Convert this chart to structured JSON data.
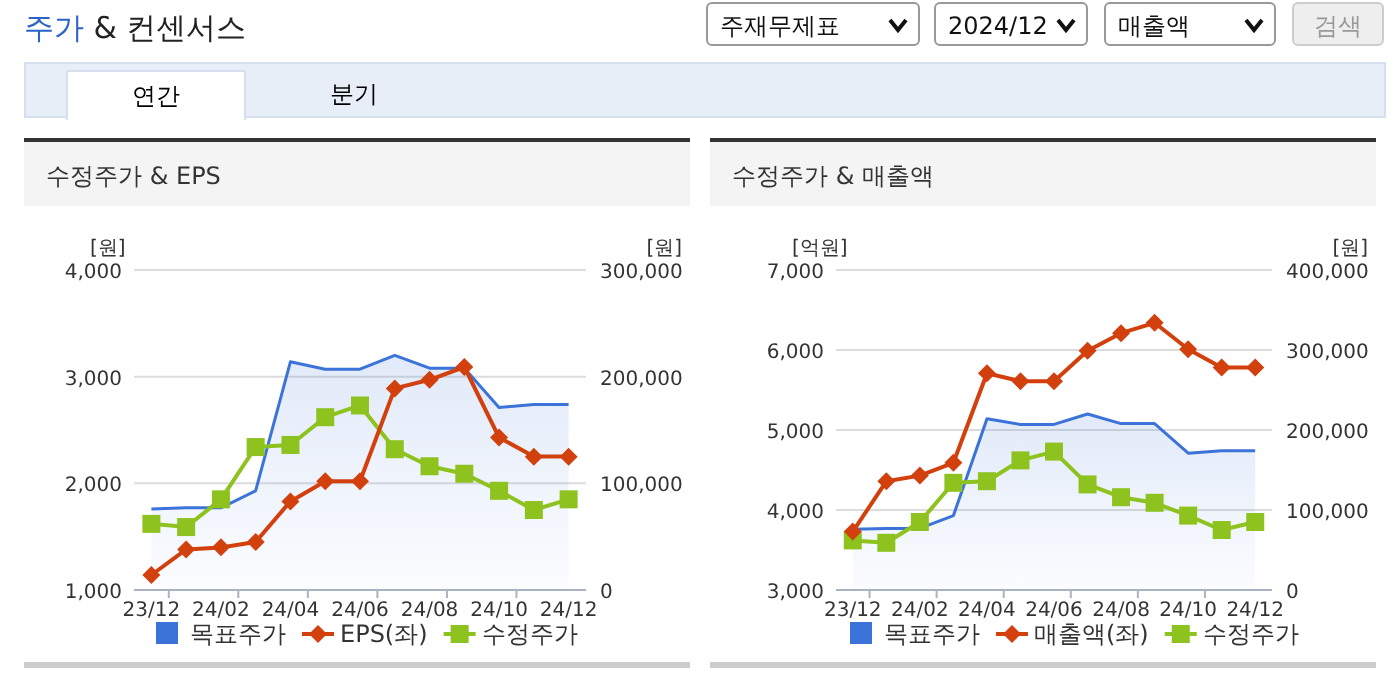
{
  "chart_data": [
    {
      "type": "other",
      "title": "주가 & 컨센서스",
      "annotations": [
        "주재무제표",
        "2024/12",
        "매출액",
        "검색",
        "연간",
        "분기"
      ]
    },
    {
      "type": "line",
      "title": "수정주가 & EPS",
      "ylabel": "[원]",
      "y2label": "[원]",
      "categories": [
        "23/12",
        null,
        "24/02",
        null,
        "24/04",
        null,
        "24/06",
        null,
        "24/08",
        null,
        "24/10",
        null,
        "24/12"
      ],
      "ylim": [
        1000,
        4000
      ],
      "yticks": [
        {
          "value": 1000,
          "label": "1,000"
        },
        {
          "value": 2000,
          "label": "2,000"
        },
        {
          "value": 3000,
          "label": "3,000"
        },
        {
          "value": 4000,
          "label": "4,000"
        }
      ],
      "y2lim": [
        0,
        300000
      ],
      "y2ticks": [
        0,
        {
          "value": 100000,
          "label": "100,000"
        },
        {
          "value": 200000,
          "label": "200,000"
        },
        {
          "value": 300000,
          "label": "300,000"
        }
      ],
      "grid": "y",
      "legend": "bottom",
      "series": [
        {
          "name": "목표주가",
          "type": "area",
          "axis": "y2",
          "color": "#3b73d9",
          "marker": "none",
          "values": [
            76000,
            77000,
            77000,
            93000,
            214000,
            207000,
            207000,
            220000,
            208000,
            208000,
            171000,
            174000,
            174000
          ]
        },
        {
          "name": "EPS(좌)",
          "type": "line",
          "color": "#d2400e",
          "marker": "diamond",
          "values": [
            1140,
            1380,
            1400,
            1450,
            1830,
            2020,
            2020,
            2890,
            2970,
            3090,
            2430,
            2250,
            2250
          ]
        },
        {
          "name": "수정주가",
          "type": "line",
          "axis": "y2",
          "color": "#8dc21f",
          "marker": "square",
          "values": [
            62000,
            59000,
            85000,
            134000,
            136000,
            162000,
            173000,
            132000,
            116000,
            109000,
            93000,
            75000,
            85000
          ]
        }
      ]
    },
    {
      "type": "line",
      "title": "수정주가 & 매출액",
      "ylabel": "[억원]",
      "y2label": "[원]",
      "categories": [
        "23/12",
        null,
        "24/02",
        null,
        "24/04",
        null,
        "24/06",
        null,
        "24/08",
        null,
        "24/10",
        null,
        "24/12"
      ],
      "ylim": [
        3000,
        7000
      ],
      "yticks": [
        {
          "value": 3000,
          "label": "3,000"
        },
        {
          "value": 4000,
          "label": "4,000"
        },
        {
          "value": 5000,
          "label": "5,000"
        },
        {
          "value": 6000,
          "label": "6,000"
        },
        {
          "value": 7000,
          "label": "7,000"
        }
      ],
      "y2lim": [
        0,
        400000
      ],
      "y2ticks": [
        0,
        {
          "value": 100000,
          "label": "100,000"
        },
        {
          "value": 200000,
          "label": "200,000"
        },
        {
          "value": 300000,
          "label": "300,000"
        },
        {
          "value": 400000,
          "label": "400,000"
        }
      ],
      "grid": "y",
      "legend": "bottom",
      "series": [
        {
          "name": "목표주가",
          "type": "area",
          "axis": "y2",
          "color": "#3b73d9",
          "marker": "none",
          "values": [
            76000,
            77000,
            77000,
            93000,
            214000,
            207000,
            207000,
            220000,
            208000,
            208000,
            171000,
            174000,
            174000
          ]
        },
        {
          "name": "매출액(좌)",
          "type": "line",
          "color": "#d2400e",
          "marker": "diamond",
          "values": [
            3730,
            4360,
            4430,
            4590,
            5710,
            5610,
            5610,
            5990,
            6210,
            6340,
            6010,
            5780,
            5780
          ]
        },
        {
          "name": "수정주가",
          "type": "line",
          "axis": "y2",
          "color": "#8dc21f",
          "marker": "square",
          "values": [
            62000,
            59000,
            85000,
            134000,
            136000,
            162000,
            173000,
            132000,
            116000,
            109000,
            93000,
            75000,
            85000
          ]
        }
      ]
    }
  ]
}
